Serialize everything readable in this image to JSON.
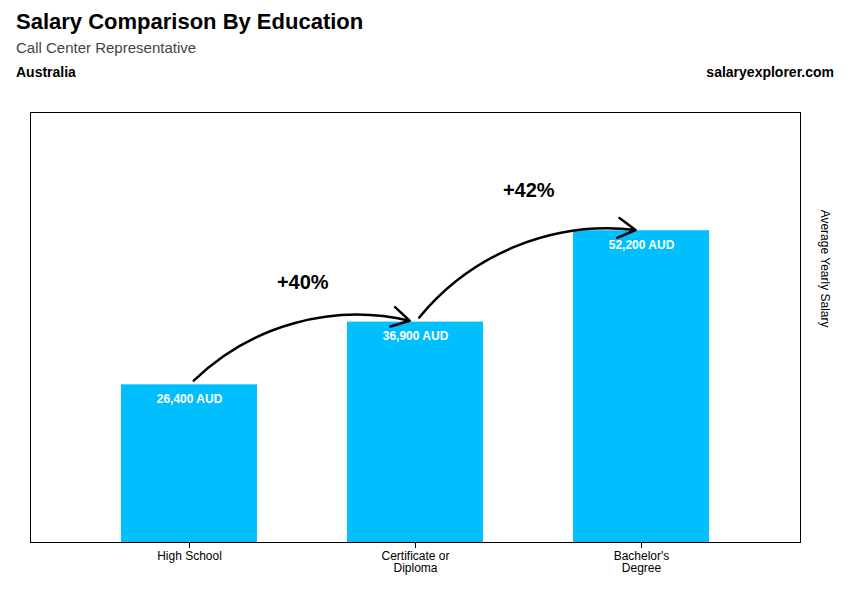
{
  "chart_data": {
    "type": "bar",
    "title": "Salary Comparison By Education",
    "subtitle": "Call Center Representative",
    "country": "Australia",
    "brand": "salaryexplorer.com",
    "categories": [
      "High School",
      "Certificate or\nDiploma",
      "Bachelor's\nDegree"
    ],
    "values": [
      26400,
      36900,
      52200
    ],
    "value_labels": [
      "26,400 AUD",
      "36,900 AUD",
      "52,200 AUD"
    ],
    "data_labels": true,
    "change_labels": [
      "+40%",
      "+42%"
    ],
    "ylabel": "Average Yearly Salary",
    "ylim": [
      0,
      72000
    ],
    "tick_labels": "x",
    "color": "#00BFFF",
    "grid": false
  }
}
